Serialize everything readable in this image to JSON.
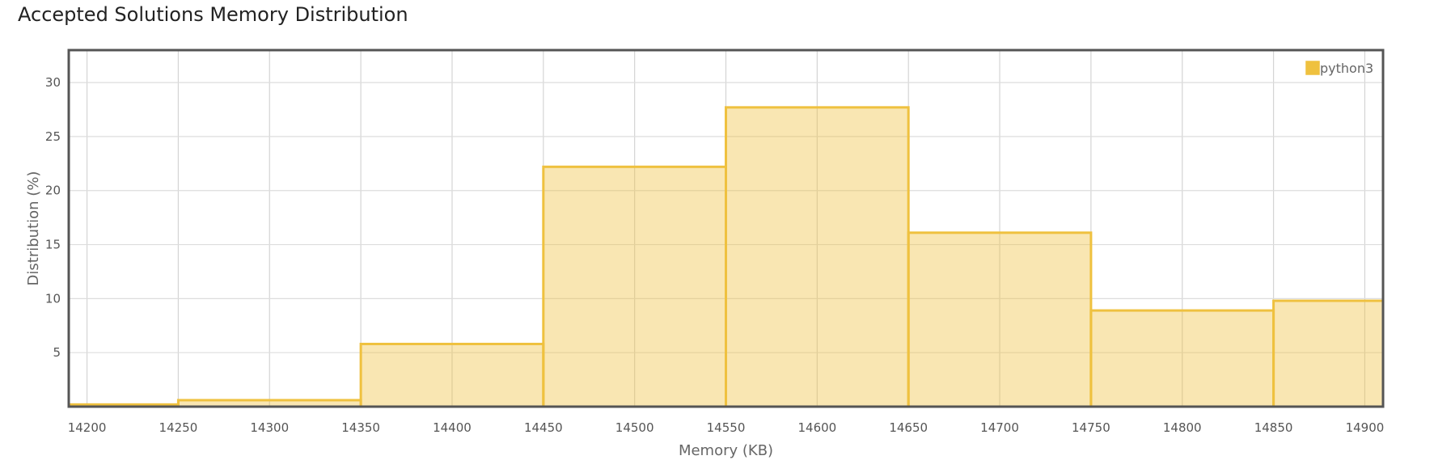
{
  "title": "Accepted Solutions Memory Distribution",
  "chart_data": {
    "type": "bar",
    "title": "Accepted Solutions Memory Distribution",
    "xlabel": "Memory (KB)",
    "ylabel": "Distribution (%)",
    "xlim": [
      14190,
      14910
    ],
    "ylim": [
      0,
      33
    ],
    "x_ticks": [
      14200,
      14250,
      14300,
      14350,
      14400,
      14450,
      14500,
      14550,
      14600,
      14650,
      14700,
      14750,
      14800,
      14850,
      14900
    ],
    "y_ticks": [
      5,
      10,
      15,
      20,
      25,
      30
    ],
    "grid": true,
    "legend_position": "top-right",
    "series": [
      {
        "name": "python3",
        "color": "#efc13f",
        "bins": [
          {
            "x0": 14190,
            "x1": 14250,
            "value": 0.2
          },
          {
            "x0": 14250,
            "x1": 14350,
            "value": 0.6
          },
          {
            "x0": 14350,
            "x1": 14450,
            "value": 5.8
          },
          {
            "x0": 14450,
            "x1": 14550,
            "value": 22.2
          },
          {
            "x0": 14550,
            "x1": 14650,
            "value": 27.7
          },
          {
            "x0": 14650,
            "x1": 14750,
            "value": 16.1
          },
          {
            "x0": 14750,
            "x1": 14850,
            "value": 8.9
          },
          {
            "x0": 14850,
            "x1": 14910,
            "value": 9.8
          }
        ]
      }
    ]
  }
}
